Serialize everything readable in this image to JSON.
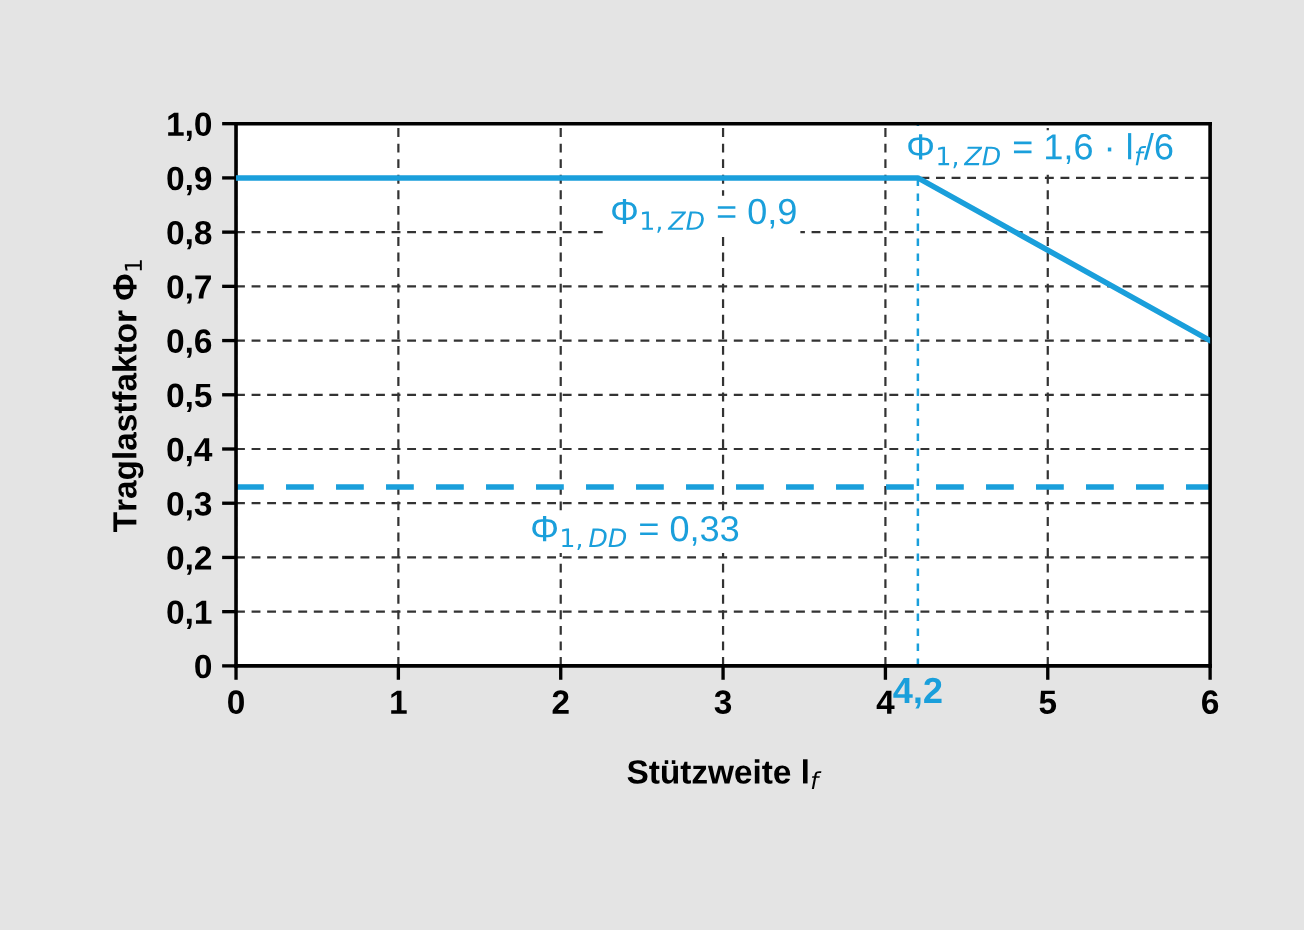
{
  "chart_data": {
    "type": "line",
    "xlabel": "Stützweite l$_{f}$",
    "ylabel": "Traglastfaktor Φ$_{1}$",
    "x": [
      0,
      4.2,
      6
    ],
    "series": [
      {
        "color": "#1a9fdb",
        "values": [
          0.9,
          0.9,
          0.6
        ]
      }
    ],
    "xlim": [
      0,
      6
    ],
    "xticks": [
      0,
      1,
      2,
      3,
      4,
      5,
      6
    ],
    "ylim": [
      0,
      1
    ],
    "yticks": [
      0,
      {
        "value": 0.1,
        "label": "0,1"
      },
      {
        "value": 0.2,
        "label": "0,2"
      },
      {
        "value": 0.3,
        "label": "0,3"
      },
      {
        "value": 0.4,
        "label": "0,4"
      },
      {
        "value": 0.5,
        "label": "0,5"
      },
      {
        "value": 0.6,
        "label": "0,6"
      },
      {
        "value": 0.7,
        "label": "0,7"
      },
      {
        "value": 0.8,
        "label": "0,8"
      },
      {
        "value": 0.9,
        "label": "0,9"
      },
      {
        "value": 1,
        "label": "1,0"
      }
    ],
    "ref_lines": [
      {
        "axis": "y",
        "value": 0.33,
        "color": "#1a9fdb",
        "line_style": "dashed"
      },
      {
        "axis": "x",
        "value": 4.2,
        "label": "4,2",
        "color": "#1a9fdb",
        "line_style": "dashed"
      }
    ],
    "annotations": [
      "Φ$_{1,ZD}$ = 0,9",
      "Φ$_{1,ZD}$ = 1,6 · l$_{f}$/6",
      "Φ$_{1,DD}$ = 0,33"
    ],
    "grid": true,
    "marker": "none",
    "line_style": "solid",
    "legend": false
  }
}
